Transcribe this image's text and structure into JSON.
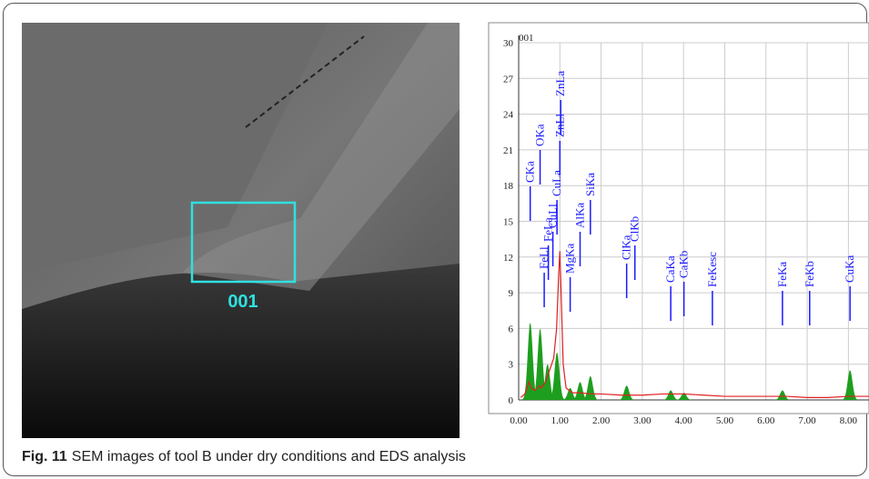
{
  "image": {
    "region_label": "001"
  },
  "chart_data": {
    "type": "spectrum",
    "title": "001",
    "xlim": [
      0,
      8.5
    ],
    "ylim": [
      0,
      30
    ],
    "xticks": [
      {
        "value": 0,
        "label": "0.00"
      },
      {
        "value": 1,
        "label": "1.00"
      },
      {
        "value": 2,
        "label": "2.00"
      },
      {
        "value": 3,
        "label": "3.00"
      },
      {
        "value": 4,
        "label": "4.00"
      },
      {
        "value": 5,
        "label": "5.00"
      },
      {
        "value": 6,
        "label": "6.00"
      },
      {
        "value": 7,
        "label": "7.00"
      },
      {
        "value": 8,
        "label": "8.00"
      }
    ],
    "yticks": [
      0,
      3,
      6,
      9,
      12,
      15,
      18,
      21,
      24,
      27,
      30
    ],
    "grid": true,
    "line": {
      "color": "#e02020",
      "x": [
        0.05,
        0.15,
        0.25,
        0.3,
        0.4,
        0.5,
        0.55,
        0.65,
        0.75,
        0.85,
        0.92,
        0.97,
        1.0,
        1.03,
        1.08,
        1.15,
        1.3,
        1.5,
        1.75,
        2.0,
        2.5,
        3.0,
        3.5,
        4.0,
        4.5,
        5.0,
        5.5,
        6.0,
        6.5,
        7.0,
        7.5,
        8.0,
        8.5
      ],
      "values": [
        0.2,
        0.5,
        1.5,
        1.0,
        0.8,
        1.2,
        1.0,
        1.5,
        2.5,
        3.5,
        6.0,
        10.5,
        12.5,
        9.0,
        3.0,
        1.0,
        0.6,
        0.6,
        0.5,
        0.5,
        0.4,
        0.4,
        0.5,
        0.5,
        0.4,
        0.3,
        0.3,
        0.3,
        0.3,
        0.2,
        0.2,
        0.3,
        0.3
      ]
    },
    "peaks": {
      "color": "#1e9e1e",
      "x": [
        0.28,
        0.52,
        0.7,
        0.93,
        1.25,
        1.49,
        1.74,
        2.62,
        3.69,
        4.01,
        6.4,
        8.04
      ],
      "values": [
        6.5,
        6.0,
        3.0,
        4.0,
        1.0,
        1.5,
        2.0,
        1.2,
        0.8,
        0.6,
        0.8,
        2.5
      ]
    },
    "annotations": {
      "color": "#1a1aff",
      "labels": [
        "CKa",
        "OKa",
        "FeLl",
        "FeLa",
        "CuLl",
        "CuLa",
        "ZnLl",
        "ZnLa",
        "MgKa",
        "AlKa",
        "SiKa",
        "ClKa",
        "ClKb",
        "CaKa",
        "CaKb",
        "FeKesc",
        "FeKa",
        "FeKb",
        "CuKa"
      ],
      "x": [
        0.28,
        0.52,
        0.62,
        0.72,
        0.83,
        0.93,
        1.0,
        1.02,
        1.25,
        1.49,
        1.74,
        2.62,
        2.82,
        3.69,
        4.01,
        4.7,
        6.4,
        7.06,
        8.04
      ]
    }
  },
  "caption": {
    "label": "Fig. 11",
    "text": "SEM images of tool B under dry conditions and EDS analysis"
  }
}
